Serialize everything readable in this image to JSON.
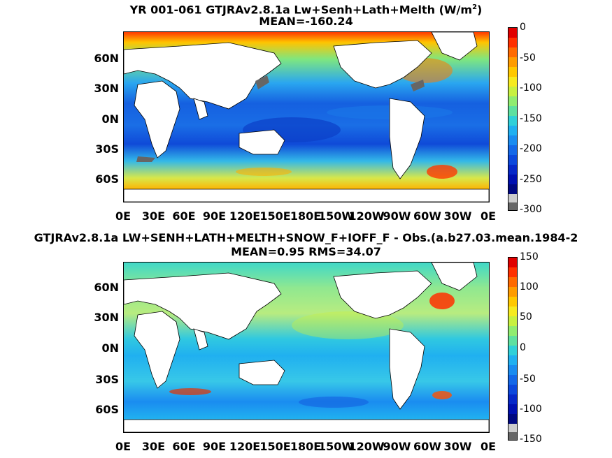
{
  "panels": [
    {
      "title_line1": "YR 001-061 GTJRAv2.8.1a Lw+Senh+Lath+Melth (W/m",
      "title_sup": "2",
      "title_close": ")",
      "title_line2": "MEAN=-160.24",
      "lat_labels": [
        "60N",
        "30N",
        "0N",
        "30S",
        "60S"
      ],
      "lon_labels": [
        "0E",
        "30E",
        "60E",
        "90E",
        "120E",
        "150E",
        "180E",
        "150W",
        "120W",
        "90W",
        "60W",
        "30W",
        "0E"
      ],
      "colorbar_labels": [
        "0",
        "-50",
        "-100",
        "-150",
        "-200",
        "-250",
        "-300"
      ],
      "colorbar_range": [
        -300,
        0
      ]
    },
    {
      "title_line1": "GTJRAv2.8.1a LW+SENH+LATH+MELTH+SNOW_F+IOFF_F - Obs.(a.b27.03.mean.1984-2",
      "title_line2": "MEAN=0.95 RMS=34.07",
      "lat_labels": [
        "60N",
        "30N",
        "0N",
        "30S",
        "60S"
      ],
      "lon_labels": [
        "0E",
        "30E",
        "60E",
        "90E",
        "120E",
        "150E",
        "180E",
        "150W",
        "120W",
        "90W",
        "60W",
        "30W",
        "0E"
      ],
      "colorbar_labels": [
        "150",
        "100",
        "50",
        "0",
        "-50",
        "-100",
        "-150"
      ],
      "colorbar_range": [
        -150,
        150
      ]
    }
  ],
  "colors": {
    "land": "#ffffff",
    "ice_gray": "#666666",
    "ice_lightgray": "#cccccc"
  }
}
